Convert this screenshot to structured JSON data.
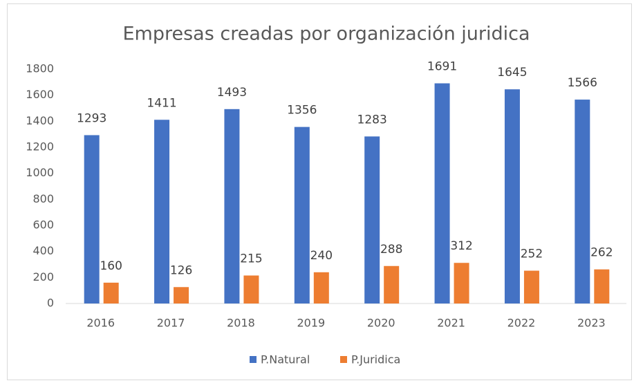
{
  "chart_data": {
    "type": "bar",
    "title": "Empresas creadas por organización juridica",
    "categories": [
      "2016",
      "2017",
      "2018",
      "2019",
      "2020",
      "2021",
      "2022",
      "2023"
    ],
    "series": [
      {
        "name": "P.Natural",
        "color": "#4472c4",
        "values": [
          1293,
          1411,
          1493,
          1356,
          1283,
          1691,
          1645,
          1566
        ]
      },
      {
        "name": "P.Juridica",
        "color": "#ed7d31",
        "values": [
          160,
          126,
          215,
          240,
          288,
          312,
          252,
          262
        ]
      }
    ],
    "ylim": [
      0,
      1800
    ],
    "yticks": [
      0,
      200,
      400,
      600,
      800,
      1000,
      1200,
      1400,
      1600,
      1800
    ],
    "grid": false,
    "legend": "bottom"
  }
}
